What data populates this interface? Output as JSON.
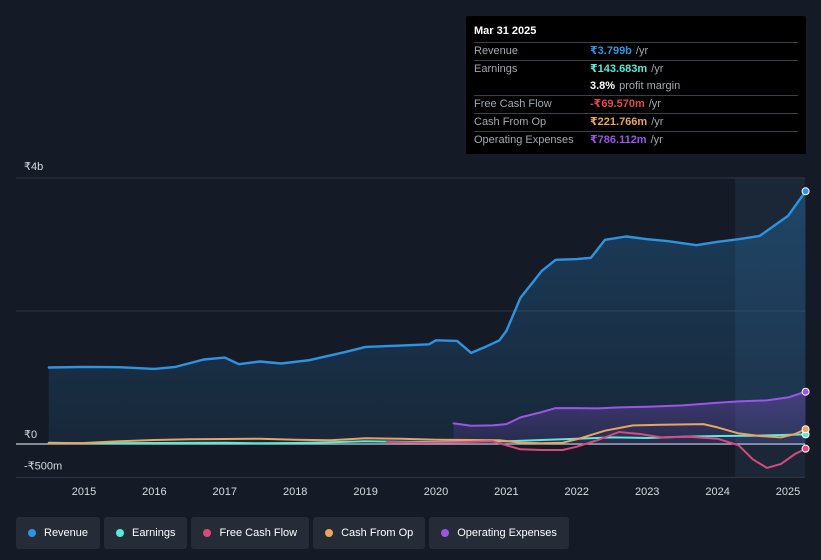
{
  "chart_data": {
    "type": "area",
    "currency_symbol": "₹",
    "y_ticks": [
      {
        "value": 4000,
        "label": "₹4b"
      },
      {
        "value": 0,
        "label": "₹0"
      },
      {
        "value": -500,
        "label": "-₹500m"
      }
    ],
    "ylim": [
      -500,
      4000
    ],
    "xlim": [
      2014.5,
      2025.25
    ],
    "x_ticks": [
      "2015",
      "2016",
      "2017",
      "2018",
      "2019",
      "2020",
      "2021",
      "2022",
      "2023",
      "2024",
      "2025"
    ],
    "forecast_region_start": 2024.25,
    "series": [
      {
        "name": "Revenue",
        "color": "#2d94e3",
        "fill": true,
        "points": [
          [
            2014.5,
            1150
          ],
          [
            2015.0,
            1160
          ],
          [
            2015.5,
            1155
          ],
          [
            2016.0,
            1130
          ],
          [
            2016.3,
            1160
          ],
          [
            2016.7,
            1270
          ],
          [
            2017.0,
            1300
          ],
          [
            2017.2,
            1200
          ],
          [
            2017.5,
            1240
          ],
          [
            2017.8,
            1210
          ],
          [
            2018.2,
            1260
          ],
          [
            2018.7,
            1380
          ],
          [
            2019.0,
            1460
          ],
          [
            2019.5,
            1480
          ],
          [
            2019.9,
            1500
          ],
          [
            2020.0,
            1560
          ],
          [
            2020.3,
            1550
          ],
          [
            2020.5,
            1370
          ],
          [
            2020.7,
            1460
          ],
          [
            2020.9,
            1560
          ],
          [
            2021.0,
            1700
          ],
          [
            2021.2,
            2200
          ],
          [
            2021.5,
            2600
          ],
          [
            2021.7,
            2770
          ],
          [
            2022.0,
            2780
          ],
          [
            2022.2,
            2800
          ],
          [
            2022.4,
            3070
          ],
          [
            2022.7,
            3120
          ],
          [
            2023.0,
            3080
          ],
          [
            2023.3,
            3050
          ],
          [
            2023.7,
            2990
          ],
          [
            2024.0,
            3040
          ],
          [
            2024.3,
            3080
          ],
          [
            2024.6,
            3130
          ],
          [
            2025.0,
            3430
          ],
          [
            2025.25,
            3800
          ]
        ]
      },
      {
        "name": "Earnings",
        "color": "#5ce8d6",
        "fill": false,
        "points": [
          [
            2014.5,
            20
          ],
          [
            2015.0,
            10
          ],
          [
            2016.0,
            15
          ],
          [
            2017.0,
            20
          ],
          [
            2017.5,
            10
          ],
          [
            2018.0,
            15
          ],
          [
            2018.5,
            25
          ],
          [
            2019.0,
            40
          ],
          [
            2019.5,
            35
          ],
          [
            2020.0,
            30
          ],
          [
            2020.5,
            40
          ],
          [
            2021.0,
            40
          ],
          [
            2021.5,
            60
          ],
          [
            2022.0,
            80
          ],
          [
            2022.5,
            100
          ],
          [
            2023.0,
            90
          ],
          [
            2023.5,
            110
          ],
          [
            2024.0,
            120
          ],
          [
            2024.5,
            125
          ],
          [
            2025.25,
            144
          ]
        ]
      },
      {
        "name": "Free Cash Flow",
        "color": "#d64a80",
        "fill": false,
        "points": [
          [
            2019.3,
            30
          ],
          [
            2019.8,
            20
          ],
          [
            2020.3,
            25
          ],
          [
            2020.8,
            40
          ],
          [
            2021.0,
            -20
          ],
          [
            2021.2,
            -80
          ],
          [
            2021.5,
            -90
          ],
          [
            2021.8,
            -90
          ],
          [
            2022.0,
            -40
          ],
          [
            2022.3,
            60
          ],
          [
            2022.6,
            180
          ],
          [
            2022.9,
            150
          ],
          [
            2023.2,
            100
          ],
          [
            2023.6,
            110
          ],
          [
            2024.0,
            80
          ],
          [
            2024.3,
            -20
          ],
          [
            2024.5,
            -230
          ],
          [
            2024.7,
            -360
          ],
          [
            2024.9,
            -300
          ],
          [
            2025.1,
            -150
          ],
          [
            2025.25,
            -70
          ]
        ]
      },
      {
        "name": "Cash From Op",
        "color": "#e8a55d",
        "fill": false,
        "points": [
          [
            2014.5,
            10
          ],
          [
            2015.0,
            15
          ],
          [
            2015.5,
            40
          ],
          [
            2016.0,
            60
          ],
          [
            2016.5,
            70
          ],
          [
            2017.0,
            75
          ],
          [
            2017.5,
            80
          ],
          [
            2018.0,
            65
          ],
          [
            2018.5,
            55
          ],
          [
            2019.0,
            85
          ],
          [
            2019.5,
            80
          ],
          [
            2020.0,
            65
          ],
          [
            2020.5,
            60
          ],
          [
            2020.9,
            55
          ],
          [
            2021.2,
            20
          ],
          [
            2021.5,
            10
          ],
          [
            2021.8,
            20
          ],
          [
            2022.0,
            70
          ],
          [
            2022.4,
            200
          ],
          [
            2022.8,
            280
          ],
          [
            2023.2,
            290
          ],
          [
            2023.8,
            300
          ],
          [
            2024.0,
            250
          ],
          [
            2024.3,
            160
          ],
          [
            2024.6,
            120
          ],
          [
            2024.9,
            100
          ],
          [
            2025.1,
            150
          ],
          [
            2025.25,
            222
          ]
        ]
      },
      {
        "name": "Operating Expenses",
        "color": "#9c55e8",
        "fill": true,
        "points": [
          [
            2020.25,
            310
          ],
          [
            2020.5,
            275
          ],
          [
            2020.8,
            280
          ],
          [
            2021.0,
            300
          ],
          [
            2021.2,
            400
          ],
          [
            2021.5,
            480
          ],
          [
            2021.7,
            540
          ],
          [
            2022.0,
            540
          ],
          [
            2022.3,
            535
          ],
          [
            2022.6,
            550
          ],
          [
            2023.0,
            560
          ],
          [
            2023.5,
            580
          ],
          [
            2024.0,
            620
          ],
          [
            2024.3,
            640
          ],
          [
            2024.7,
            655
          ],
          [
            2025.0,
            700
          ],
          [
            2025.25,
            786
          ]
        ]
      }
    ]
  },
  "tooltip": {
    "date": "Mar 31 2025",
    "rows": [
      {
        "label": "Revenue",
        "value": "₹3.799b",
        "unit": "/yr",
        "color": "#2d94e3"
      },
      {
        "label": "Earnings",
        "value": "₹143.683m",
        "unit": "/yr",
        "color": "#5ce8d6"
      },
      {
        "label": "",
        "value": "3.8%",
        "unit": "profit margin",
        "color": "#ffffff"
      },
      {
        "label": "Free Cash Flow",
        "value": "-₹69.570m",
        "unit": "/yr",
        "color": "#e5484d"
      },
      {
        "label": "Cash From Op",
        "value": "₹221.766m",
        "unit": "/yr",
        "color": "#e8a55d"
      },
      {
        "label": "Operating Expenses",
        "value": "₹786.112m",
        "unit": "/yr",
        "color": "#9c55e8"
      }
    ]
  },
  "legend": [
    {
      "label": "Revenue",
      "color": "#2d94e3"
    },
    {
      "label": "Earnings",
      "color": "#5ce8d6"
    },
    {
      "label": "Free Cash Flow",
      "color": "#d64a80"
    },
    {
      "label": "Cash From Op",
      "color": "#e8a55d"
    },
    {
      "label": "Operating Expenses",
      "color": "#9c55e8"
    }
  ]
}
